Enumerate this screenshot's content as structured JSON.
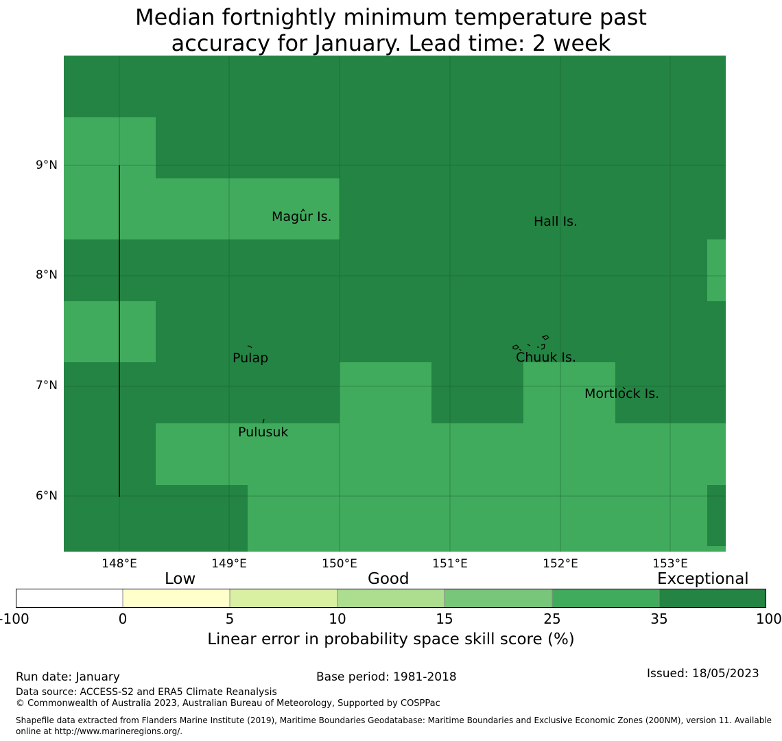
{
  "title_line1": "Median fortnightly minimum temperature past",
  "title_line2": "accuracy for January. Lead time: 2 week",
  "map": {
    "lat_labels": [
      "9°N",
      "8°N",
      "7°N",
      "6°N"
    ],
    "lon_labels": [
      "148°E",
      "149°E",
      "150°E",
      "151°E",
      "152°E",
      "153°E"
    ],
    "places": [
      {
        "name": "Magur Is."
      },
      {
        "name": "Hall Is."
      },
      {
        "name": "Pulap"
      },
      {
        "name": "Chuuk Is."
      },
      {
        "name": "Mortlock Is."
      },
      {
        "name": "Pulusuk"
      }
    ],
    "colors": {
      "exceptional": "#238443",
      "good_high": "#41ab5d"
    }
  },
  "legend": {
    "categories": [
      "Low",
      "Good",
      "Exceptional"
    ],
    "ticks": [
      "-100",
      "0",
      "5",
      "10",
      "15",
      "25",
      "35",
      "100"
    ],
    "colors": [
      "#ffffff",
      "#ffffcc",
      "#d9f0a3",
      "#addd8e",
      "#78c679",
      "#41ab5d",
      "#238443"
    ],
    "label": "Linear error in probability space skill score (%)"
  },
  "footer": {
    "run_date": "Run date: January",
    "base_period": "Base period: 1981-2018",
    "issued": "Issued: 18/05/2023",
    "data_source": "Data source: ACCESS-S2 and ERA5 Climate Reanalysis",
    "copyright": "© Commonwealth of Australia 2023, Australian Bureau of Meteorology, Supported by COSPPac",
    "shapefile_line1": "Shapefile data extracted from Flanders Marine Institute (2019), Maritime Boundaries Geodatabase: Maritime Boundaries and Exclusive Economic Zones (200NM), version 11. Available",
    "shapefile_line2": "online at http://www.marineregions.org/."
  }
}
